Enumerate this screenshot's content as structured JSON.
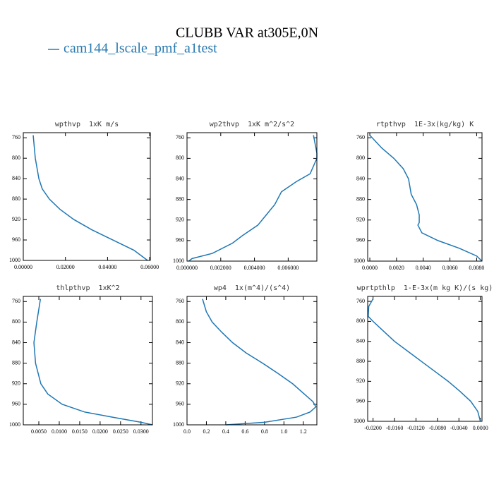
{
  "title": "CLUBB VAR at305E,0N",
  "legend": "cam144_lscale_pmf_a1test",
  "legend_color": "#2a7ab0",
  "chart_data": [
    {
      "type": "line",
      "title": "wpthvp  1xK m/s",
      "y": [
        755,
        800,
        840,
        860,
        880,
        900,
        920,
        940,
        960,
        980,
        1000
      ],
      "series": [
        {
          "color": "#1f77b4",
          "values": [
            0.0047,
            0.0057,
            0.0074,
            0.009,
            0.0124,
            0.0174,
            0.024,
            0.0325,
            0.0425,
            0.0525,
            0.059
          ]
        }
      ],
      "xlim": [
        0,
        0.0603
      ],
      "xticks": [
        {
          "value": 0,
          "label": "0.00000"
        },
        {
          "value": 0.02,
          "label": "0.02000"
        },
        {
          "value": 0.04,
          "label": "0.04000"
        },
        {
          "value": 0.06,
          "label": "0.06000"
        }
      ],
      "ylim": [
        1000,
        750
      ],
      "yticks": [
        760,
        800,
        840,
        880,
        920,
        960,
        1000
      ]
    },
    {
      "type": "line",
      "title": "wp2thvp  1xK m^2/s^2",
      "y": [
        755,
        790,
        800,
        830,
        845,
        865,
        890,
        910,
        930,
        950,
        965,
        985,
        995,
        1000
      ],
      "series": [
        {
          "color": "#1f77b4",
          "values": [
            0.0075,
            0.0077,
            0.0077,
            0.0073,
            0.0065,
            0.0056,
            0.0052,
            0.0047,
            0.0042,
            0.0033,
            0.0027,
            0.0015,
            0.0003,
            0.0001
          ]
        }
      ],
      "xlim": [
        0,
        0.0077
      ],
      "xticks": [
        {
          "value": 0,
          "label": "0.000000"
        },
        {
          "value": 0.002,
          "label": "0.002000"
        },
        {
          "value": 0.004,
          "label": "0.004000"
        },
        {
          "value": 0.006,
          "label": "0.006000"
        }
      ],
      "ylim": [
        1000,
        750
      ],
      "yticks": [
        760,
        800,
        840,
        880,
        920,
        960,
        1000
      ]
    },
    {
      "type": "line",
      "title": "rtpthvp  1E-3x(kg/kg) K",
      "y": [
        755,
        780,
        800,
        820,
        840,
        870,
        890,
        910,
        925,
        930,
        945,
        960,
        975,
        990,
        1000
      ],
      "series": [
        {
          "color": "#1f77b4",
          "values": [
            0.0,
            0.0009,
            0.0018,
            0.0025,
            0.0029,
            0.0031,
            0.0035,
            0.0037,
            0.0037,
            0.0036,
            0.0039,
            0.0051,
            0.0067,
            0.008,
            0.0084
          ]
        }
      ],
      "xlim": [
        -0.00016,
        0.0084
      ],
      "xticks": [
        {
          "value": 0,
          "label": "0.0000"
        },
        {
          "value": 0.002,
          "label": "0.0020"
        },
        {
          "value": 0.004,
          "label": "0.0040"
        },
        {
          "value": 0.006,
          "label": "0.0060"
        },
        {
          "value": 0.008,
          "label": "0.0080"
        }
      ],
      "ylim": [
        1000,
        750
      ],
      "yticks": [
        760,
        800,
        840,
        880,
        920,
        960,
        1000
      ]
    },
    {
      "type": "line",
      "title": "thlpthvp  1xK^2",
      "y": [
        755,
        800,
        840,
        880,
        920,
        940,
        960,
        975,
        985,
        995,
        1000
      ],
      "series": [
        {
          "color": "#1f77b4",
          "values": [
            0.0054,
            0.0045,
            0.0038,
            0.0042,
            0.0055,
            0.0072,
            0.0107,
            0.0162,
            0.023,
            0.03,
            0.0328
          ]
        }
      ],
      "xlim": [
        0.0012,
        0.0328
      ],
      "xticks": [
        {
          "value": 0.005,
          "label": "0.0050"
        },
        {
          "value": 0.01,
          "label": "0.0100"
        },
        {
          "value": 0.015,
          "label": "0.0150"
        },
        {
          "value": 0.02,
          "label": "0.0200"
        },
        {
          "value": 0.025,
          "label": "0.0250"
        },
        {
          "value": 0.03,
          "label": "0.0300"
        }
      ],
      "ylim": [
        1000,
        750
      ],
      "yticks": [
        760,
        800,
        840,
        880,
        920,
        960,
        1000
      ]
    },
    {
      "type": "line",
      "title": "wp4  1x(m^4)/(s^4)",
      "y": [
        755,
        780,
        800,
        820,
        840,
        860,
        880,
        900,
        920,
        940,
        955,
        965,
        975,
        985,
        995,
        1000
      ],
      "series": [
        {
          "color": "#1f77b4",
          "values": [
            0.16,
            0.2,
            0.26,
            0.36,
            0.47,
            0.61,
            0.78,
            0.94,
            1.09,
            1.21,
            1.3,
            1.33,
            1.27,
            1.13,
            0.8,
            0.4
          ]
        }
      ],
      "xlim": [
        0,
        1.34
      ],
      "xticks": [
        {
          "value": 0,
          "label": "0.0"
        },
        0.2,
        0.4,
        0.6,
        0.8,
        {
          "value": 1,
          "label": "1.0"
        },
        1.2
      ],
      "ylim": [
        1000,
        750
      ],
      "yticks": [
        760,
        800,
        840,
        880,
        920,
        960,
        1000
      ]
    },
    {
      "type": "line",
      "title": "wprtpthlp  1-E-3x(m kg K)/(s kg)",
      "y": [
        755,
        770,
        790,
        800,
        820,
        840,
        860,
        880,
        900,
        920,
        940,
        960,
        980,
        1000
      ],
      "series": [
        {
          "color": "#1f77b4",
          "values": [
            -0.02,
            -0.0208,
            -0.0209,
            -0.02,
            -0.018,
            -0.016,
            -0.0135,
            -0.011,
            -0.0085,
            -0.006,
            -0.0038,
            -0.0018,
            -0.0005,
            0.0
          ]
        }
      ],
      "xlim": [
        -0.021,
        0.0003
      ],
      "xticks": [
        {
          "value": -0.02,
          "label": "-0.0200"
        },
        {
          "value": -0.016,
          "label": "-0.0160"
        },
        {
          "value": -0.012,
          "label": "-0.0120"
        },
        {
          "value": -0.008,
          "label": "-0.0080"
        },
        {
          "value": -0.004,
          "label": "-0.0040"
        },
        {
          "value": 0,
          "label": "0.0000"
        }
      ],
      "ylim": [
        1000,
        750
      ],
      "yticks": [
        760,
        800,
        840,
        880,
        920,
        960,
        1000
      ]
    }
  ]
}
